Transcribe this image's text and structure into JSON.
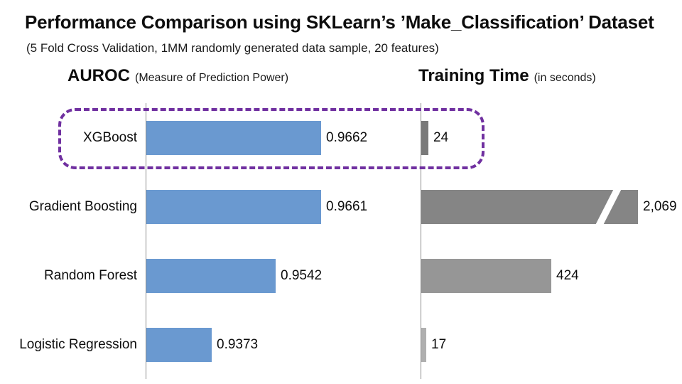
{
  "page": {
    "title": "Performance Comparison using SKLearn’s ’Make_Classification’ Dataset",
    "subtitle": "(5 Fold Cross Validation, 1MM randomly generated data sample, 20 features)"
  },
  "panels": {
    "auroc": {
      "title": "AUROC",
      "subtitle": "(Measure of Prediction Power)"
    },
    "time": {
      "title": "Training Time",
      "subtitle": "(in seconds)"
    }
  },
  "chart_data": {
    "type": "bar",
    "orientation": "horizontal",
    "categories": [
      "XGBoost",
      "Gradient Boosting",
      "Random Forest",
      "Logistic Regression"
    ],
    "series": [
      {
        "name": "AUROC",
        "values": [
          0.9662,
          0.9661,
          0.9542,
          0.9373
        ],
        "labels": [
          "0.9662",
          "0.9661",
          "0.9542",
          "0.9373"
        ],
        "color": "#6A99D0",
        "xlim": [
          0.92,
          0.98
        ],
        "grid": false,
        "legend": "none"
      },
      {
        "name": "Training Time (seconds)",
        "values": [
          24,
          2069,
          424,
          17
        ],
        "labels": [
          "24",
          "2,069",
          "424",
          "17"
        ],
        "colors": [
          "#7A7A7A",
          "#858585",
          "#969696",
          "#AFAFAF"
        ],
        "axis_break": [
          false,
          true,
          false,
          false
        ],
        "grid": false,
        "legend": "none"
      }
    ],
    "highlight": {
      "category": "XGBoost",
      "style": "dashed-rounded-box",
      "color": "#7030A0"
    }
  }
}
